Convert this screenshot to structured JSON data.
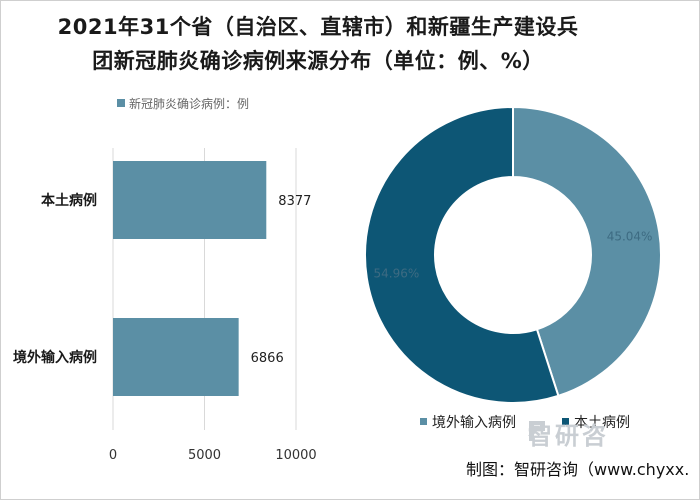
{
  "chart_data": [
    {
      "type": "bar",
      "orientation": "horizontal",
      "title": "2021年31个省（自治区、直辖市）和新疆生产建设兵团新冠肺炎确诊病例来源分布（单位：例、%）",
      "categories": [
        "本土病例",
        "境外输入病例"
      ],
      "series": [
        {
          "name": "新冠肺炎确诊病例：例",
          "values": [
            8377,
            6866
          ],
          "color": "#5b8fa5"
        }
      ],
      "xlim": [
        0,
        10000
      ],
      "xticks": [
        "0",
        "5000",
        "10000"
      ],
      "grid": true,
      "legend": "top"
    },
    {
      "type": "pie",
      "style": "donut",
      "slices": [
        {
          "label": "境外输入病例",
          "value": 45.04,
          "value_label": "45.04%",
          "color": "#5b8fa5"
        },
        {
          "label": "本土病例",
          "value": 54.96,
          "value_label": "54.96%",
          "color": "#0d5675"
        }
      ],
      "legend": "bottom"
    }
  ],
  "title_line1": "2021年31个省（自治区、直辖市）和新疆生产建设兵",
  "title_line2": "团新冠肺炎确诊病例来源分布（单位：例、%）",
  "footer": "制图：智研咨询（www.chyxx.",
  "watermark": "智研咨"
}
